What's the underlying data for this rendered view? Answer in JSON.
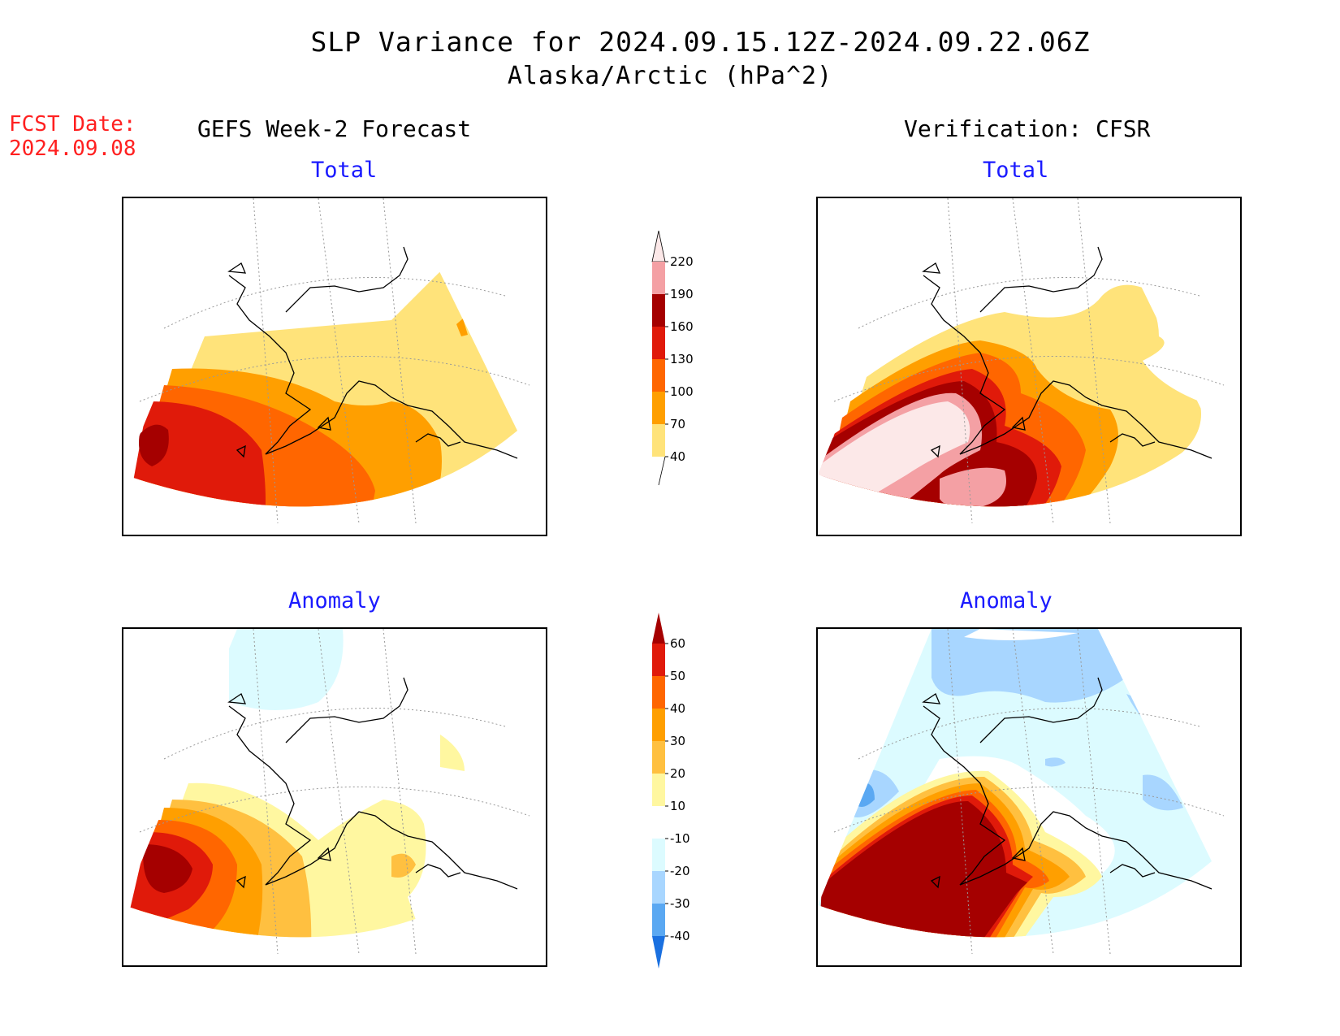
{
  "header": {
    "title": "SLP Variance for 2024.09.15.12Z-2024.09.22.06Z",
    "subtitle": "Alaska/Arctic (hPa^2)",
    "fcst_label": "FCST Date:",
    "fcst_date": "2024.09.08"
  },
  "columns": {
    "left": "GEFS Week-2 Forecast",
    "right": "Verification: CFSR"
  },
  "panels": {
    "fcst_total": "Total",
    "fcst_anom": "Anomaly",
    "ver_total": "Total",
    "ver_anom": "Anomaly"
  },
  "colorbars": {
    "total": {
      "labels": [
        "220",
        "190",
        "160",
        "130",
        "100",
        "70",
        "40"
      ],
      "colors": [
        "#fce8e8",
        "#f4a0a4",
        "#a50000",
        "#e01a0a",
        "#ff6600",
        "#ff9f00",
        "#ffe37a"
      ]
    },
    "anomaly": {
      "labels": [
        "60",
        "50",
        "40",
        "30",
        "20",
        "10",
        "-10",
        "-20",
        "-30",
        "-40"
      ],
      "colors": [
        "#a50000",
        "#e01a0a",
        "#ff6600",
        "#ff9f00",
        "#ffc040",
        "#fff7a0",
        "#ffffff",
        "#dcfbff",
        "#a8d6ff",
        "#5aa8f2",
        "#1a70e0"
      ]
    }
  },
  "style": {
    "title_color": "#000000",
    "panel_title_color": "#1a1aff",
    "fcst_color": "#ff2020"
  }
}
